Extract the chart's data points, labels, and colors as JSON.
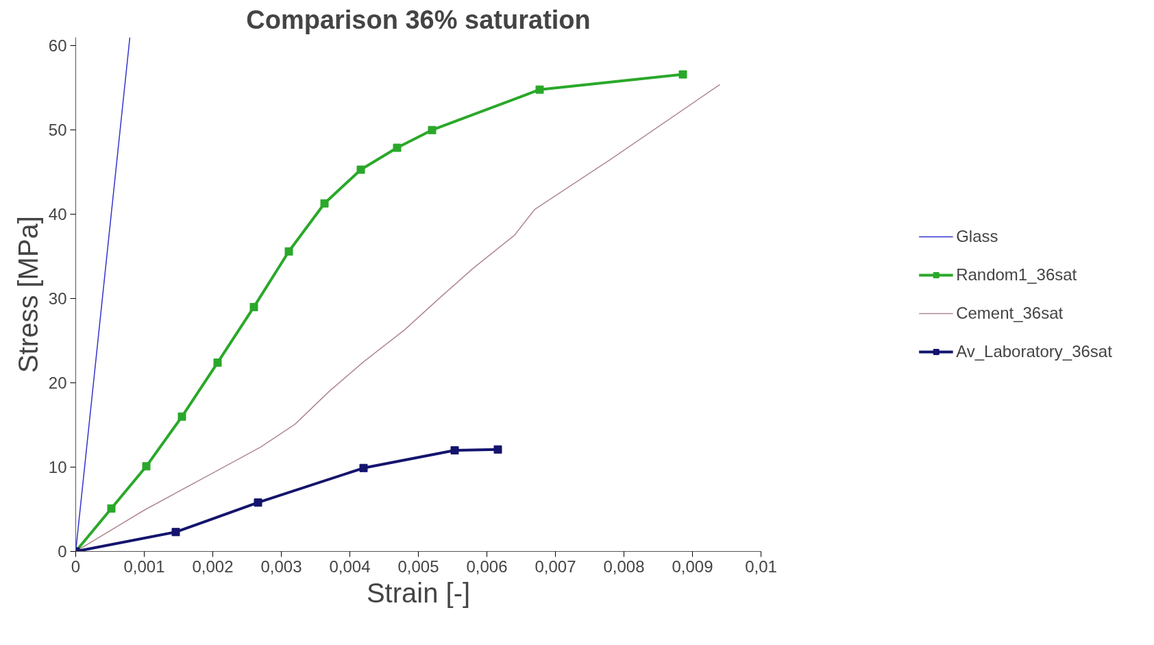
{
  "chart_data": {
    "type": "line",
    "title": "Comparison 36% saturation",
    "xlabel": "Strain [-]",
    "ylabel": "Stress [MPa]",
    "xlim": [
      0,
      0.01
    ],
    "ylim": [
      0,
      61
    ],
    "xticks": [
      0,
      {
        "value": 0.001,
        "label": "0,001"
      },
      {
        "value": 0.002,
        "label": "0,002"
      },
      {
        "value": 0.003,
        "label": "0,003"
      },
      {
        "value": 0.004,
        "label": "0,004"
      },
      {
        "value": 0.005,
        "label": "0,005"
      },
      {
        "value": 0.006,
        "label": "0,006"
      },
      {
        "value": 0.007,
        "label": "0,007"
      },
      {
        "value": 0.008,
        "label": "0,008"
      },
      {
        "value": 0.009,
        "label": "0,009"
      },
      {
        "value": 0.01,
        "label": "0,01"
      }
    ],
    "yticks": [
      0,
      10,
      20,
      30,
      40,
      50,
      60
    ],
    "grid": false,
    "legend": "right",
    "series": [
      {
        "name": "Glass",
        "color": "#3333cc",
        "marker": "none",
        "x": [
          0,
          0.00079
        ],
        "values": [
          0,
          61
        ]
      },
      {
        "name": "Random1_36sat",
        "color": "#2aa82a",
        "marker": "square",
        "x": [
          0,
          0.00052,
          0.00103,
          0.00155,
          0.00207,
          0.0026,
          0.00311,
          0.00363,
          0.00416,
          0.00469,
          0.0052,
          0.00677,
          0.00886
        ],
        "values": [
          0,
          5.1,
          10.1,
          16.0,
          22.4,
          29.0,
          35.6,
          41.3,
          45.3,
          47.9,
          50.0,
          54.8,
          56.6
        ]
      },
      {
        "name": "Cement_36sat",
        "color": "#b08890",
        "marker": "none",
        "x": [
          0,
          0.001,
          0.002,
          0.0027,
          0.0032,
          0.0037,
          0.0042,
          0.0048,
          0.0053,
          0.0058,
          0.0064,
          0.0067,
          0.0078,
          0.0094
        ],
        "values": [
          0,
          4.9,
          9.3,
          12.4,
          15.1,
          19.0,
          22.5,
          26.3,
          30.0,
          33.6,
          37.5,
          40.6,
          46.5,
          55.4
        ]
      },
      {
        "name": "Av_Laboratory_36sat",
        "color": "#14146e",
        "marker": "square",
        "x": [
          0,
          0.00146,
          0.00266,
          0.0042,
          0.00553,
          0.00616
        ],
        "values": [
          0,
          2.3,
          5.8,
          9.9,
          12.0,
          12.1
        ]
      }
    ]
  }
}
